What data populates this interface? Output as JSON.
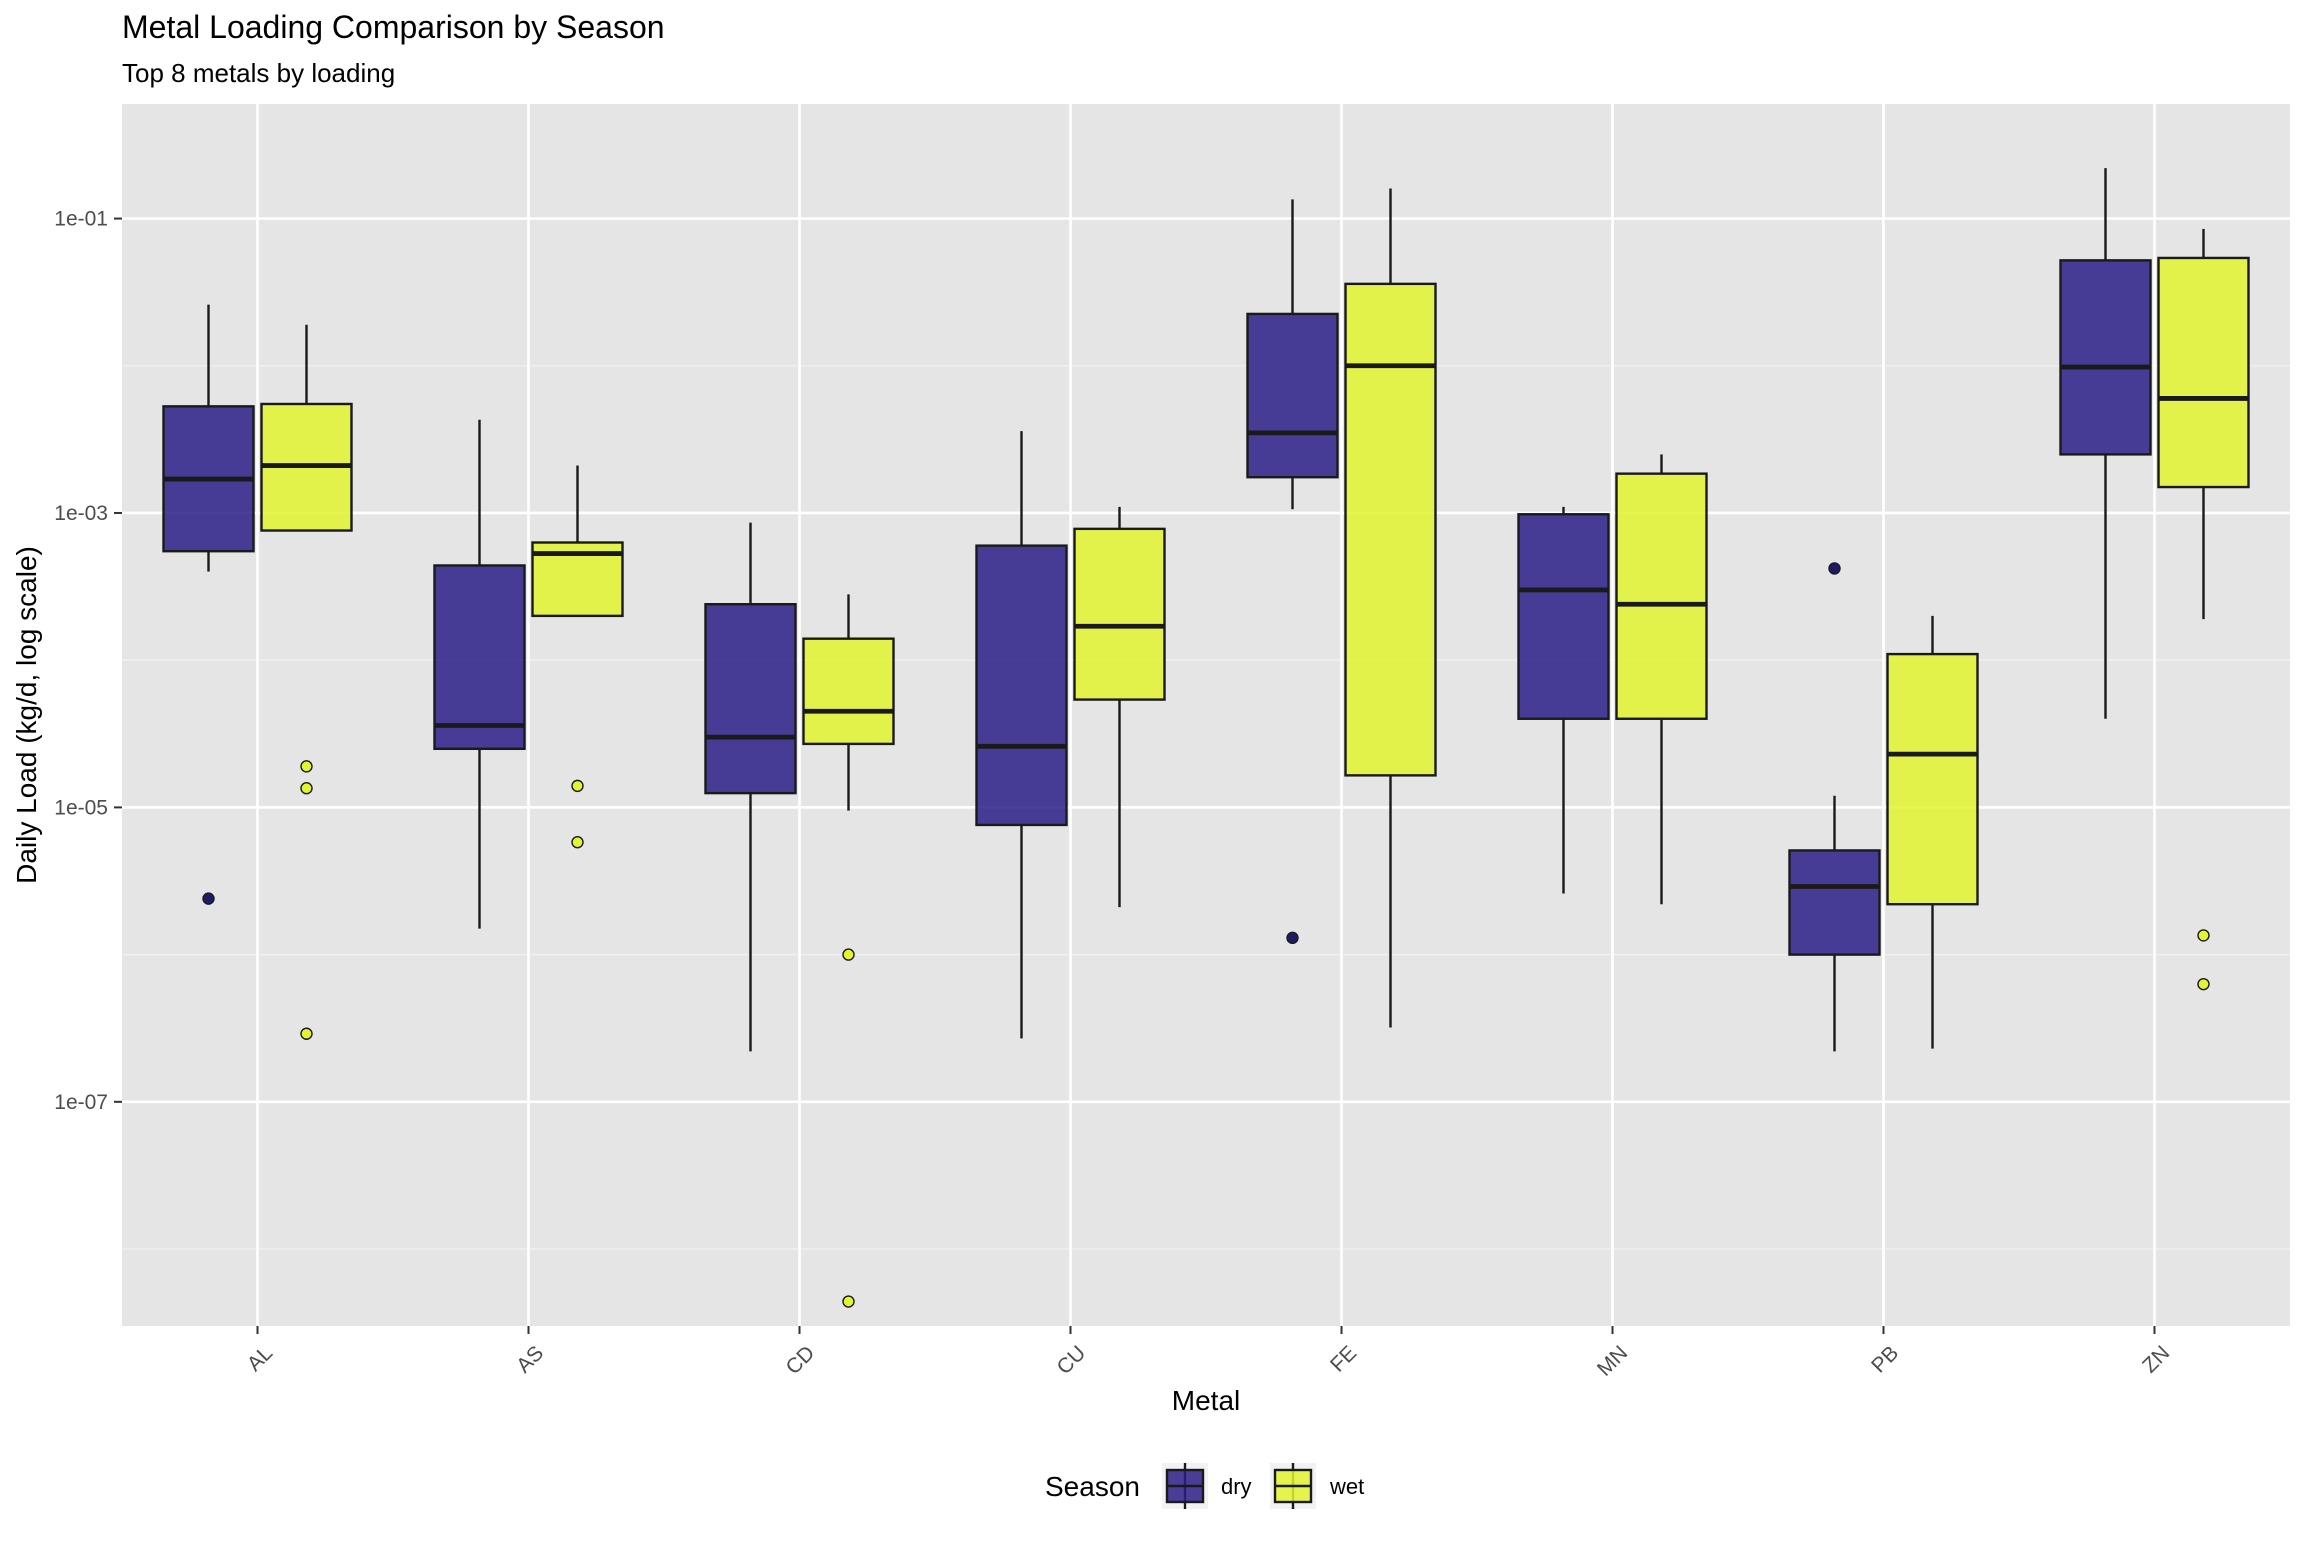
{
  "chart_data": {
    "type": "boxplot",
    "title": "Metal Loading Comparison by Season",
    "subtitle": "Top 8 metals by loading",
    "xlabel": "Metal",
    "ylabel": "Daily Load (kg/d, log scale)",
    "yscale": "log10",
    "ylim": [
      3e-09,
      0.6
    ],
    "yticks": [
      {
        "value": 0.1,
        "label": "1e-01"
      },
      {
        "value": 0.001,
        "label": "1e-03"
      },
      {
        "value": 1e-05,
        "label": "1e-05"
      },
      {
        "value": 1e-07,
        "label": "1e-07"
      }
    ],
    "minor_grid": [
      0.01,
      0.0001,
      1e-06,
      1e-08
    ],
    "grid": true,
    "background": "#e5e5e5",
    "categories": [
      "AL",
      "AS",
      "CD",
      "CU",
      "FE",
      "MN",
      "PB",
      "ZN"
    ],
    "legend": {
      "title": "Season",
      "position": "bottom"
    },
    "series": [
      {
        "name": "dry",
        "color": "#2a1f88",
        "boxes": [
          {
            "whisker_low": 0.0004,
            "q1": 0.00055,
            "median": 0.0017,
            "q3": 0.0053,
            "whisker_high": 0.026,
            "outliers": [
              2.4e-06
            ]
          },
          {
            "whisker_low": 1.5e-06,
            "q1": 2.5e-05,
            "median": 3.6e-05,
            "q3": 0.00044,
            "whisker_high": 0.0043,
            "outliers": []
          },
          {
            "whisker_low": 2.2e-07,
            "q1": 1.25e-05,
            "median": 3e-05,
            "q3": 0.00024,
            "whisker_high": 0.00086,
            "outliers": []
          },
          {
            "whisker_low": 2.7e-07,
            "q1": 7.6e-06,
            "median": 2.6e-05,
            "q3": 0.0006,
            "whisker_high": 0.0036,
            "outliers": []
          },
          {
            "whisker_low": 0.00106,
            "q1": 0.00175,
            "median": 0.0035,
            "q3": 0.0225,
            "whisker_high": 0.135,
            "outliers": [
              1.3e-06
            ]
          },
          {
            "whisker_low": 2.6e-06,
            "q1": 4e-05,
            "median": 0.0003,
            "q3": 0.00098,
            "whisker_high": 0.0011,
            "outliers": []
          },
          {
            "whisker_low": 2.2e-07,
            "q1": 1e-06,
            "median": 2.9e-06,
            "q3": 5.1e-06,
            "whisker_high": 1.2e-05,
            "outliers": [
              0.00042
            ]
          },
          {
            "whisker_low": 4e-05,
            "q1": 0.0025,
            "median": 0.0098,
            "q3": 0.052,
            "whisker_high": 0.22,
            "outliers": []
          }
        ]
      },
      {
        "name": "wet",
        "color": "#e3f530",
        "boxes": [
          {
            "whisker_low": 0.00076,
            "q1": 0.00076,
            "median": 0.0021,
            "q3": 0.0055,
            "whisker_high": 0.019,
            "outliers": [
              1.9e-05,
              1.35e-05,
              2.9e-07
            ]
          },
          {
            "whisker_low": 0.0002,
            "q1": 0.0002,
            "median": 0.00053,
            "q3": 0.00063,
            "whisker_high": 0.0021,
            "outliers": [
              1.4e-05,
              5.8e-06
            ]
          },
          {
            "whisker_low": 9.5e-06,
            "q1": 2.7e-05,
            "median": 4.5e-05,
            "q3": 0.00014,
            "whisker_high": 0.00028,
            "outliers": [
              1e-06,
              4.4e-09
            ]
          },
          {
            "whisker_low": 2.1e-06,
            "q1": 5.4e-05,
            "median": 0.00017,
            "q3": 0.00078,
            "whisker_high": 0.0011,
            "outliers": []
          },
          {
            "whisker_low": 3.2e-07,
            "q1": 1.65e-05,
            "median": 0.01,
            "q3": 0.036,
            "whisker_high": 0.16,
            "outliers": []
          },
          {
            "whisker_low": 2.2e-06,
            "q1": 4e-05,
            "median": 0.00024,
            "q3": 0.00185,
            "whisker_high": 0.0025,
            "outliers": []
          },
          {
            "whisker_low": 2.3e-07,
            "q1": 2.2e-06,
            "median": 2.3e-05,
            "q3": 0.00011,
            "whisker_high": 0.0002,
            "outliers": []
          },
          {
            "whisker_low": 0.00019,
            "q1": 0.0015,
            "median": 0.006,
            "q3": 0.054,
            "whisker_high": 0.085,
            "outliers": [
              1.35e-06,
              6.3e-07
            ]
          }
        ]
      }
    ]
  }
}
